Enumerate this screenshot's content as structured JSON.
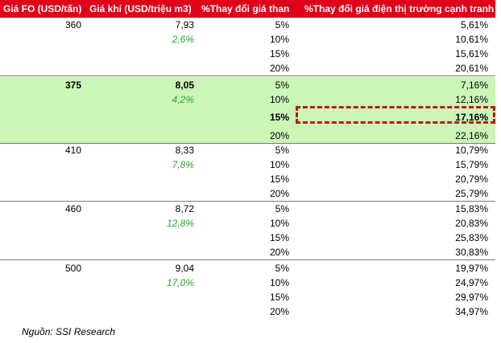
{
  "header": {
    "col_fo": "Giá FO (USD/tấn)",
    "col_gas": "Giá khí (USD/triệu m3)",
    "col_coal": "%Thay đổi giá than",
    "col_elec": "%Thay đổi giá điện thị trường cạnh tranh"
  },
  "groups": [
    {
      "fo": "360",
      "gas": "7,93",
      "gas_pct": "2,6%",
      "highlight": false,
      "coal": [
        "5%",
        "10%",
        "15%",
        "20%"
      ],
      "elec": [
        "5,61%",
        "10,61%",
        "15,61%",
        "20,61%"
      ]
    },
    {
      "fo": "375",
      "gas": "8,05",
      "gas_pct": "4,2%",
      "highlight": true,
      "coal": [
        "5%",
        "10%",
        "15%",
        "20%"
      ],
      "elec": [
        "7,16%",
        "12,16%",
        "17,16%",
        "22,16%"
      ]
    },
    {
      "fo": "410",
      "gas": "8,33",
      "gas_pct": "7,8%",
      "highlight": false,
      "coal": [
        "5%",
        "10%",
        "15%",
        "20%"
      ],
      "elec": [
        "10,79%",
        "15,79%",
        "20,79%",
        "25,79%"
      ]
    },
    {
      "fo": "460",
      "gas": "8,72",
      "gas_pct": "12,8%",
      "highlight": false,
      "coal": [
        "5%",
        "10%",
        "15%",
        "20%"
      ],
      "elec": [
        "15,83%",
        "20,83%",
        "25,83%",
        "30,83%"
      ]
    },
    {
      "fo": "500",
      "gas": "9,04",
      "gas_pct": "17,0%",
      "highlight": false,
      "coal": [
        "5%",
        "10%",
        "15%",
        "20%"
      ],
      "elec": [
        "19,97%",
        "24,97%",
        "29,97%",
        "34,97%"
      ]
    }
  ],
  "source": "Nguồn: SSI Research",
  "colors": {
    "header_bg": "#e1001a",
    "highlight_bg": "#ccf5b8",
    "pct_green": "#2aa52a",
    "box_border": "#c2141a"
  }
}
